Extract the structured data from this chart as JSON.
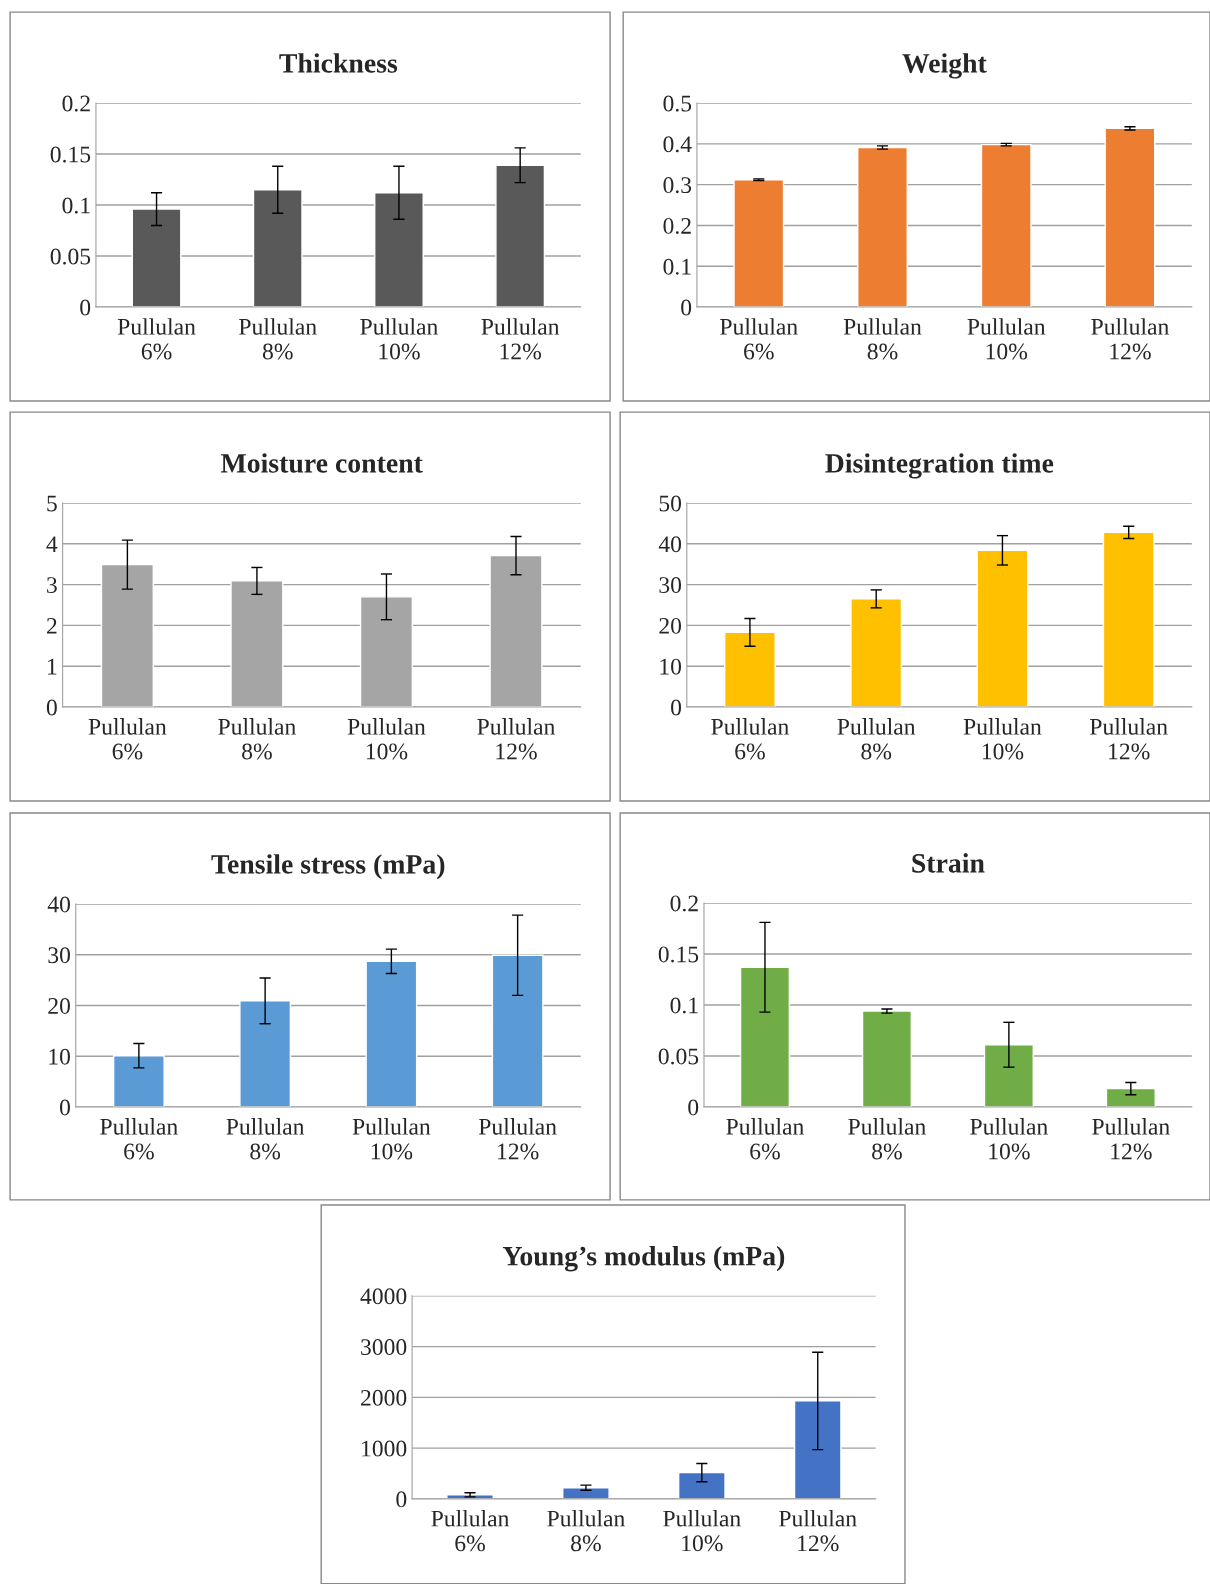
{
  "chart_data": [
    {
      "type": "bar",
      "title": "Thickness",
      "categories": [
        "Pullulan\n6%",
        "Pullulan\n8%",
        "Pullulan\n10%",
        "Pullulan\n12%"
      ],
      "values": [
        0.096,
        0.115,
        0.112,
        0.139
      ],
      "errors": [
        0.016,
        0.023,
        0.026,
        0.017
      ],
      "color": "#595959",
      "ylim": [
        0,
        0.2
      ],
      "yticks": [
        0,
        0.05,
        0.1,
        0.15,
        0.2
      ],
      "grid": "y"
    },
    {
      "type": "bar",
      "title": "Weight",
      "categories": [
        "Pullulan\n6%",
        "Pullulan\n8%",
        "Pullulan\n10%",
        "Pullulan\n12%"
      ],
      "values": [
        0.312,
        0.391,
        0.398,
        0.438
      ],
      "errors": [
        0.002,
        0.004,
        0.003,
        0.004
      ],
      "color": "#ed7d31",
      "ylim": [
        0,
        0.5
      ],
      "yticks": [
        0,
        0.1,
        0.2,
        0.3,
        0.4,
        0.5
      ],
      "grid": "y"
    },
    {
      "type": "bar",
      "title": "Moisture content",
      "categories": [
        "Pullulan\n6%",
        "Pullulan\n8%",
        "Pullulan\n10%",
        "Pullulan\n12%"
      ],
      "values": [
        3.49,
        3.09,
        2.7,
        3.71
      ],
      "errors": [
        0.6,
        0.33,
        0.56,
        0.47
      ],
      "color": "#a5a5a5",
      "ylim": [
        0,
        5
      ],
      "yticks": [
        0,
        1,
        2,
        3,
        4,
        5
      ],
      "grid": "y"
    },
    {
      "type": "bar",
      "title": "Disintegration time",
      "categories": [
        "Pullulan\n6%",
        "Pullulan\n8%",
        "Pullulan\n10%",
        "Pullulan\n12%"
      ],
      "values": [
        18.3,
        26.5,
        38.4,
        42.8
      ],
      "errors": [
        3.4,
        2.2,
        3.6,
        1.5
      ],
      "color": "#ffc000",
      "ylim": [
        0,
        50
      ],
      "yticks": [
        0,
        10,
        20,
        30,
        40,
        50
      ],
      "grid": "y"
    },
    {
      "type": "bar",
      "title": "Tensile stress (mPa)",
      "categories": [
        "Pullulan\n6%",
        "Pullulan\n8%",
        "Pullulan\n10%",
        "Pullulan\n12%"
      ],
      "values": [
        10.1,
        20.9,
        28.7,
        29.9
      ],
      "errors": [
        2.4,
        4.5,
        2.4,
        7.9
      ],
      "color": "#5b9bd5",
      "ylim": [
        0,
        40
      ],
      "yticks": [
        0,
        10,
        20,
        30,
        40
      ],
      "grid": "y"
    },
    {
      "type": "bar",
      "title": "Strain",
      "categories": [
        "Pullulan\n6%",
        "Pullulan\n8%",
        "Pullulan\n10%",
        "Pullulan\n12%"
      ],
      "values": [
        0.137,
        0.094,
        0.061,
        0.018
      ],
      "errors": [
        0.044,
        0.002,
        0.022,
        0.006
      ],
      "color": "#70ad47",
      "ylim": [
        0,
        0.2
      ],
      "yticks": [
        0,
        0.05,
        0.1,
        0.15,
        0.2
      ],
      "grid": "y"
    },
    {
      "type": "bar",
      "title": "Young’s modulus (mPa)",
      "categories": [
        "Pullulan\n6%",
        "Pullulan\n8%",
        "Pullulan\n10%",
        "Pullulan\n12%"
      ],
      "values": [
        80,
        220,
        517,
        1930
      ],
      "errors": [
        40,
        50,
        180,
        960
      ],
      "color": "#4472c4",
      "ylim": [
        0,
        4000
      ],
      "yticks": [
        0,
        1000,
        2000,
        3000,
        4000
      ],
      "grid": "y"
    }
  ]
}
